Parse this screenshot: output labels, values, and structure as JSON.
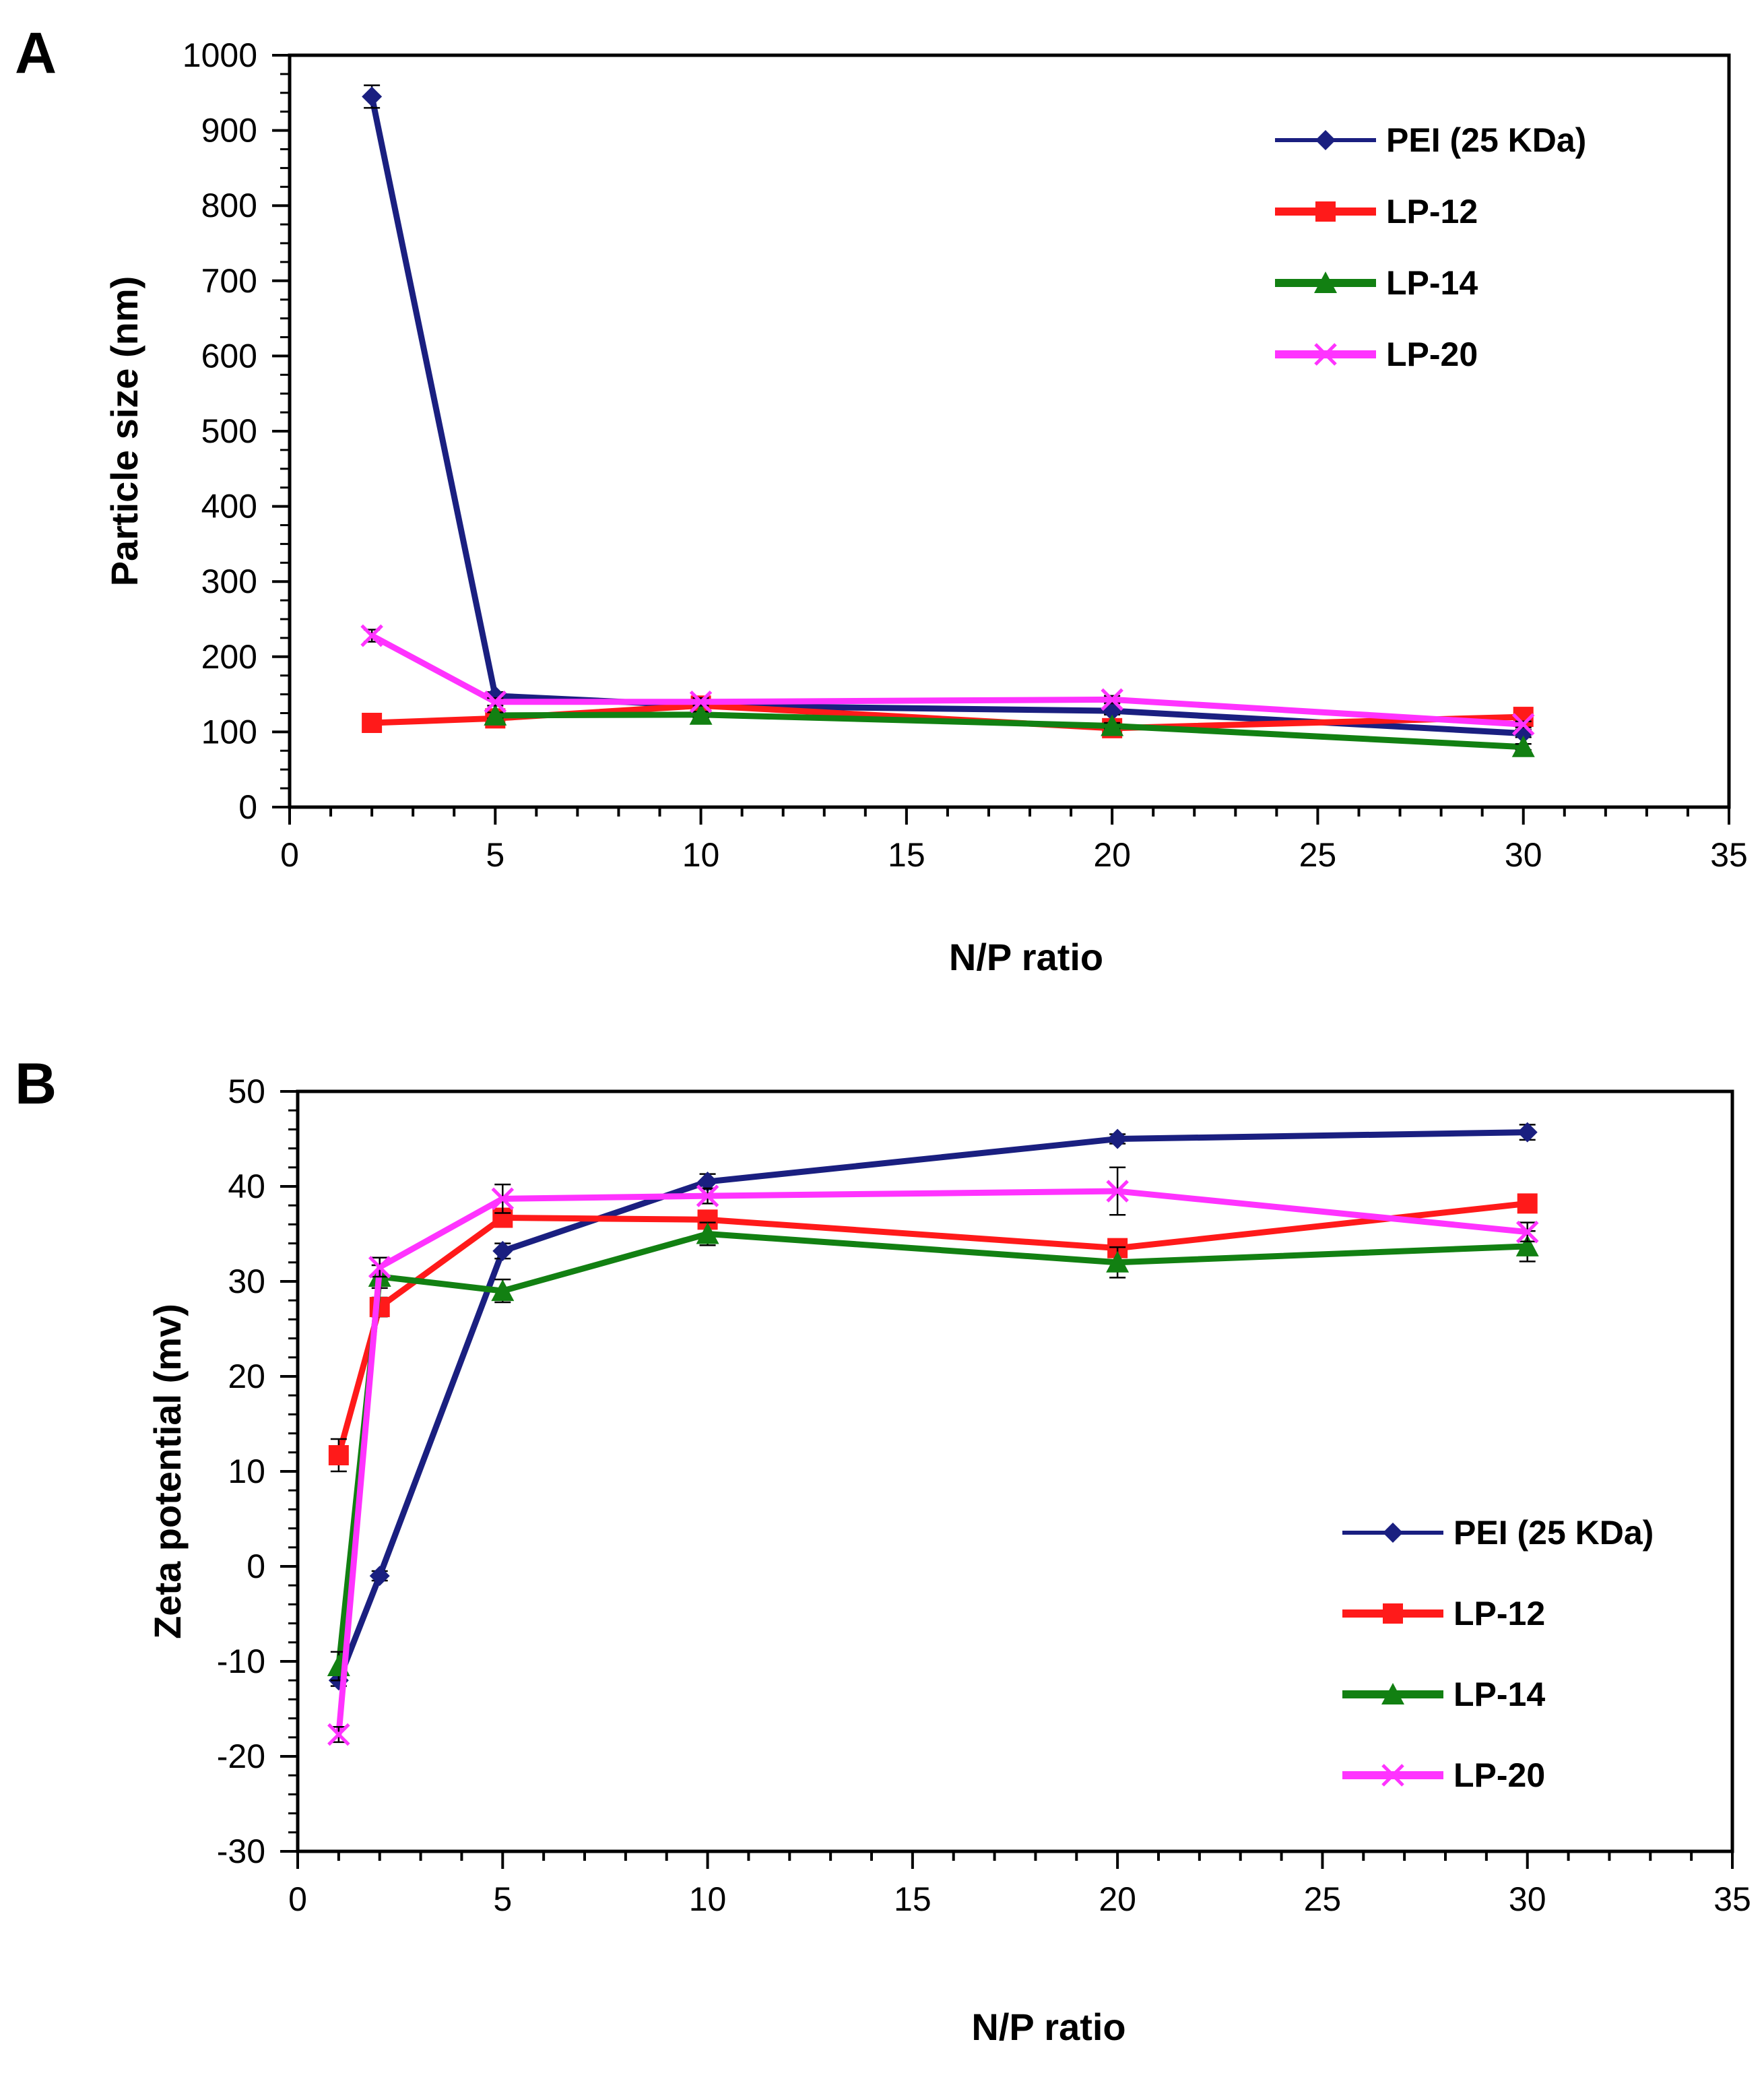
{
  "chart_data": [
    {
      "panel": "A",
      "type": "line",
      "title": "",
      "xlabel": "N/P ratio",
      "ylabel": "Particle size (nm)",
      "xlim": [
        0,
        35
      ],
      "ylim": [
        0,
        1000
      ],
      "xticks": [
        "0",
        "5",
        "10",
        "15",
        "20",
        "25",
        "30",
        "35"
      ],
      "yticks": [
        "0",
        "100",
        "200",
        "300",
        "400",
        "500",
        "600",
        "700",
        "800",
        "900",
        "1000"
      ],
      "legend_position": "top-right",
      "series": [
        {
          "name": "PEI (25 KDa)",
          "color": "#1a1f80",
          "marker": "diamond",
          "x": [
            2,
            5,
            10,
            20,
            30
          ],
          "y": [
            945,
            148,
            135,
            128,
            98
          ],
          "err": [
            15,
            5,
            4,
            5,
            5
          ]
        },
        {
          "name": "LP-12",
          "color": "#ff1a1a",
          "marker": "square",
          "x": [
            2,
            5,
            10,
            20,
            30
          ],
          "y": [
            112,
            118,
            135,
            105,
            120
          ],
          "err": [
            4,
            4,
            5,
            5,
            4
          ]
        },
        {
          "name": "LP-14",
          "color": "#128012",
          "marker": "triangle",
          "x": [
            5,
            10,
            20,
            30
          ],
          "y": [
            122,
            123,
            108,
            80
          ],
          "err": [
            4,
            4,
            4,
            4
          ]
        },
        {
          "name": "LP-20",
          "color": "#ff33ff",
          "marker": "x",
          "x": [
            2,
            5,
            10,
            20,
            30
          ],
          "y": [
            228,
            140,
            140,
            143,
            110
          ],
          "err": [
            8,
            5,
            5,
            5,
            4
          ]
        }
      ]
    },
    {
      "panel": "B",
      "type": "line",
      "title": "",
      "xlabel": "N/P ratio",
      "ylabel": "Zeta potential (mv)",
      "xlim": [
        0,
        35
      ],
      "ylim": [
        -30,
        50
      ],
      "xticks": [
        "0",
        "5",
        "10",
        "15",
        "20",
        "25",
        "30",
        "35"
      ],
      "yticks": [
        "-30",
        "-20",
        "-10",
        "0",
        "10",
        "20",
        "30",
        "40",
        "50"
      ],
      "legend_position": "bottom-right",
      "series": [
        {
          "name": "PEI (25 KDa)",
          "color": "#1a1f80",
          "marker": "diamond",
          "x": [
            1,
            2,
            5,
            10,
            20,
            30
          ],
          "y": [
            -12,
            -1,
            33.2,
            40.5,
            45,
            45.7
          ],
          "err": [
            0.6,
            0.5,
            0.8,
            0.8,
            0.5,
            0.8
          ]
        },
        {
          "name": "LP-12",
          "color": "#ff1a1a",
          "marker": "square",
          "x": [
            1,
            2,
            5,
            10,
            20,
            30
          ],
          "y": [
            11.7,
            27.3,
            36.7,
            36.5,
            33.5,
            38.2
          ],
          "err": [
            1.7,
            1.0,
            0.7,
            0.7,
            0.7,
            0.8
          ]
        },
        {
          "name": "LP-14",
          "color": "#128012",
          "marker": "triangle",
          "x": [
            1,
            2,
            5,
            10,
            20,
            30
          ],
          "y": [
            -10.5,
            30.5,
            29,
            35,
            32,
            33.7
          ],
          "err": [
            1.5,
            1.2,
            1.2,
            1.2,
            1.6,
            1.6
          ]
        },
        {
          "name": "LP-20",
          "color": "#ff33ff",
          "marker": "x",
          "x": [
            1,
            2,
            5,
            10,
            20,
            30
          ],
          "y": [
            -17.7,
            31.5,
            38.7,
            39,
            39.5,
            35.2
          ],
          "err": [
            0.8,
            1.0,
            1.5,
            0.8,
            2.5,
            1.0
          ]
        }
      ]
    }
  ]
}
